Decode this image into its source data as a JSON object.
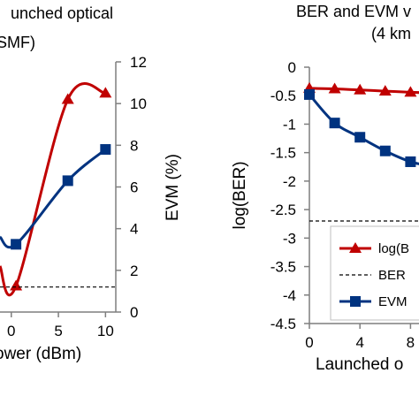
{
  "chart_data": [
    {
      "type": "line",
      "title_lines": [
        "unched optical",
        "SMF)"
      ],
      "xlabel": "ower (dBm)",
      "ylabel_right": "EVM (%)",
      "xlim": [
        -1.2,
        11
      ],
      "x_ticks": [
        0,
        5,
        10
      ],
      "y_right_lim": [
        0,
        12
      ],
      "y_right_ticks": [
        0,
        2,
        4,
        6,
        8,
        10,
        12
      ],
      "series": [
        {
          "color": "#c00000",
          "marker": "triangle",
          "x": [
            -1.2,
            0.5,
            6,
            10
          ],
          "y": [
            2.2,
            1.25,
            10.2,
            10.5
          ]
        },
        {
          "color": "#003380",
          "marker": "square",
          "x": [
            -1.2,
            0.5,
            6,
            10
          ],
          "y": [
            3.6,
            3.25,
            6.3,
            7.8
          ]
        },
        {
          "color": "#000000",
          "style": "dashed",
          "x": [
            -1.2,
            11
          ],
          "y": [
            1.2,
            1.2
          ]
        }
      ]
    },
    {
      "type": "line",
      "title_lines": [
        "BER and EVM v",
        "(4 km"
      ],
      "xlabel": "Launched o",
      "ylabel": "log(BER)",
      "xlim": [
        0,
        9.3
      ],
      "x_ticks": [
        0,
        4,
        8
      ],
      "ylim": [
        -4.5,
        0
      ],
      "y_ticks": [
        0,
        -0.5,
        -1,
        -1.5,
        -2,
        -2.5,
        -3,
        -3.5,
        -4,
        -4.5
      ],
      "series": [
        {
          "name": "log(B",
          "color": "#c00000",
          "marker": "triangle",
          "x": [
            0,
            2,
            4,
            6,
            8,
            9.3
          ],
          "y": [
            -0.37,
            -0.38,
            -0.4,
            -0.42,
            -0.44,
            -0.45
          ]
        },
        {
          "name": "EVM",
          "color": "#003380",
          "marker": "square",
          "x": [
            0,
            2,
            4,
            6,
            8,
            9.3
          ],
          "y": [
            -0.48,
            -0.98,
            -1.23,
            -1.47,
            -1.66,
            -1.72
          ]
        },
        {
          "name": "BER",
          "color": "#000000",
          "style": "dashed",
          "x": [
            0,
            9.3
          ],
          "y": [
            -2.7,
            -2.7
          ]
        }
      ],
      "legend_placement": "bottom-right"
    }
  ]
}
